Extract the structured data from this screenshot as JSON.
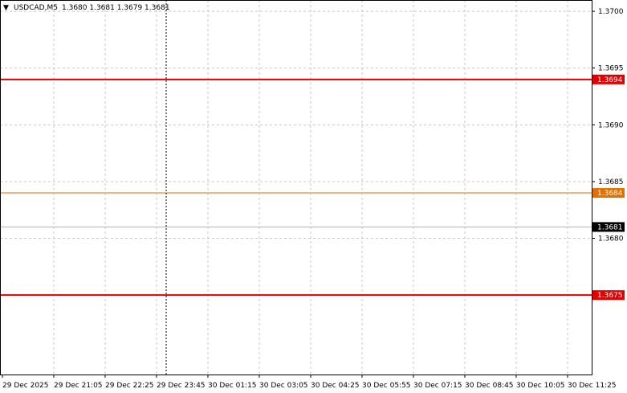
{
  "header": {
    "symbol": "USDCAD,M5",
    "ohlc": "1.3680 1.3681 1.3679 1.3681"
  },
  "colors": {
    "background": "#ffffff",
    "grid": "#c8c8c8",
    "candle": "#000000",
    "bollinger": "#20b2aa",
    "resistance": "#e00000",
    "mid_level": "#e07000",
    "price_line": "#b0b0b0"
  },
  "chart_data": {
    "type": "candlestick",
    "symbol": "USDCAD",
    "timeframe": "M5",
    "ylim": [
      1.3668,
      1.3701
    ],
    "y_ticks": [
      "1.3700",
      "1.3695",
      "1.3690",
      "1.3685",
      "1.3680"
    ],
    "x_ticks": [
      "29 Dec 2025",
      "29 Dec 21:05",
      "29 Dec 22:25",
      "29 Dec 23:45",
      "30 Dec 01:15",
      "30 Dec 03:05",
      "30 Dec 04:25",
      "30 Dec 05:55",
      "30 Dec 07:15",
      "30 Dec 08:45",
      "30 Dec 10:05",
      "30 Dec 11:25"
    ],
    "horizontal_levels": [
      {
        "label": "1.3694",
        "value": 1.3694,
        "style": "resistance"
      },
      {
        "label": "1.3684",
        "value": 1.3684,
        "style": "mid"
      },
      {
        "label": "1.3675",
        "value": 1.3675,
        "style": "resistance"
      }
    ],
    "current_price": {
      "label": "1.3681",
      "value": 1.3681
    },
    "candles": [],
    "bands": {
      "upper": [],
      "middle": [],
      "lower": []
    }
  }
}
